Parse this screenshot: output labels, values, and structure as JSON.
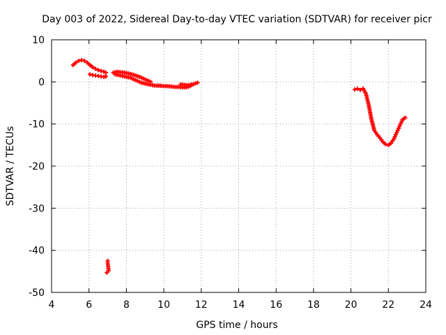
{
  "chart_data": {
    "type": "scatter",
    "title": "Day 003 of 2022, Sidereal Day-to-day VTEC variation (SDTVAR) for receiver picr",
    "xlabel": "GPS time / hours",
    "ylabel": "SDTVAR / TECUs",
    "xlim": [
      4,
      24
    ],
    "ylim": [
      -50,
      10
    ],
    "x_ticks": [
      4,
      6,
      8,
      10,
      12,
      14,
      16,
      18,
      20,
      22,
      24
    ],
    "y_ticks": [
      10,
      0,
      -10,
      -20,
      -30,
      -40,
      -50
    ],
    "grid": true,
    "legend": "none",
    "series_color": "#ff0000",
    "series": [
      {
        "name": "segment-1",
        "x": [
          5.15,
          5.3,
          5.45,
          5.6,
          5.75,
          5.9,
          6.05,
          6.2,
          6.35,
          6.5,
          6.65,
          6.8,
          6.9
        ],
        "y": [
          4.0,
          4.6,
          5.0,
          5.2,
          5.0,
          4.6,
          4.0,
          3.5,
          3.1,
          2.8,
          2.6,
          2.4,
          2.2
        ]
      },
      {
        "name": "segment-2",
        "x": [
          6.05,
          6.2,
          6.35,
          6.5,
          6.65,
          6.8,
          6.9
        ],
        "y": [
          1.8,
          1.6,
          1.5,
          1.4,
          1.3,
          1.2,
          1.3
        ]
      },
      {
        "name": "segment-3",
        "x": [
          7.0,
          7.0,
          7.05,
          6.95
        ],
        "y": [
          -42.5,
          -43.0,
          -44.8,
          -45.3
        ]
      },
      {
        "name": "segment-4",
        "x": [
          7.3,
          7.5,
          7.7,
          7.9,
          8.1,
          8.3,
          8.5,
          8.7,
          8.9,
          9.1,
          9.3
        ],
        "y": [
          2.2,
          2.4,
          2.3,
          2.2,
          2.0,
          1.8,
          1.5,
          1.2,
          0.8,
          0.4,
          0.0
        ]
      },
      {
        "name": "segment-5",
        "x": [
          7.4,
          7.6,
          7.8,
          8.0,
          8.2,
          8.4,
          8.6,
          8.8,
          9.0,
          9.2,
          9.4,
          9.6,
          9.8
        ],
        "y": [
          1.8,
          1.6,
          1.4,
          1.2,
          1.0,
          0.6,
          0.2,
          -0.2,
          -0.4,
          -0.6,
          -0.8,
          -0.9,
          -0.9
        ]
      },
      {
        "name": "segment-6",
        "x": [
          9.8,
          10.0,
          10.2,
          10.4,
          10.6,
          10.8,
          11.0,
          11.2,
          11.4,
          11.6,
          11.8
        ],
        "y": [
          -0.9,
          -1.0,
          -1.0,
          -1.1,
          -1.2,
          -1.2,
          -1.3,
          -1.3,
          -1.0,
          -0.5,
          -0.2
        ]
      },
      {
        "name": "segment-7",
        "x": [
          10.9,
          11.1,
          11.3,
          11.5
        ],
        "y": [
          -0.6,
          -0.7,
          -0.8,
          -0.6
        ]
      },
      {
        "name": "segment-8",
        "x": [
          20.2,
          20.35,
          20.5,
          20.65,
          20.8,
          20.95,
          21.1,
          21.25,
          21.4,
          21.55,
          21.7,
          21.85,
          22.0,
          22.15,
          22.3,
          22.45,
          22.6,
          22.75,
          22.9
        ],
        "y": [
          -1.8,
          -1.6,
          -1.9,
          -1.6,
          -2.8,
          -5.5,
          -9.0,
          -11.5,
          -12.5,
          -13.3,
          -14.2,
          -14.8,
          -15.0,
          -14.5,
          -13.5,
          -12.0,
          -10.5,
          -9.0,
          -8.5
        ]
      }
    ]
  }
}
